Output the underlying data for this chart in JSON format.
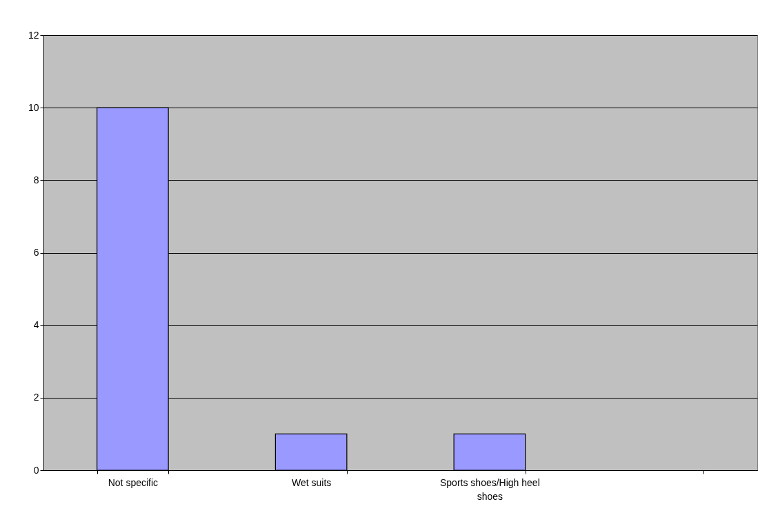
{
  "chart_data": {
    "type": "bar",
    "categories": [
      "Not specific",
      "Wet suits",
      "Sports shoes/High heel shoes",
      null
    ],
    "values": [
      10,
      1,
      1,
      null
    ],
    "color": "#9999ff",
    "ylim": [
      0,
      12
    ],
    "yticks": [
      0,
      2,
      4,
      6,
      8,
      10,
      12
    ],
    "grid": "y"
  }
}
